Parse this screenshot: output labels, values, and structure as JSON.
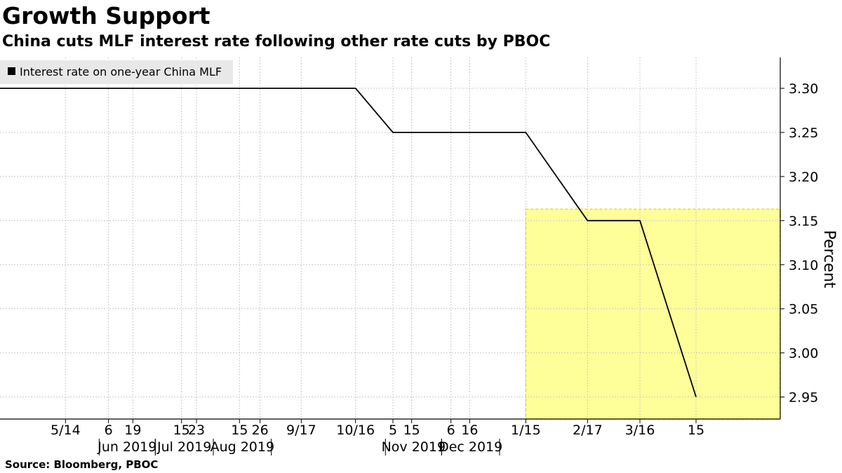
{
  "header": {
    "title": "Growth Support",
    "subtitle": "China cuts MLF interest rate following other rate cuts by PBOC"
  },
  "footer": {
    "source": "Source: Bloomberg, PBOC"
  },
  "chart_data": {
    "type": "line",
    "ylabel": "Percent",
    "ylim": [
      2.925,
      3.335
    ],
    "yticks": [
      2.95,
      3.0,
      3.05,
      3.1,
      3.15,
      3.2,
      3.25,
      3.3
    ],
    "ytick_labels": [
      "2.95",
      "3.00",
      "3.05",
      "3.10",
      "3.15",
      "3.20",
      "3.25",
      "3.30"
    ],
    "grid": true,
    "legend_position": "top-left",
    "xlim": [
      "2019-04-09",
      "2020-05-30"
    ],
    "xticks": [
      {
        "date": "2019-05-14",
        "label": "5/14"
      },
      {
        "date": "2019-06-06",
        "label": "6"
      },
      {
        "date": "2019-06-19",
        "label": "19"
      },
      {
        "date": "2019-07-15",
        "label": "15"
      },
      {
        "date": "2019-07-23",
        "label": "23"
      },
      {
        "date": "2019-08-15",
        "label": "15"
      },
      {
        "date": "2019-08-26",
        "label": "26"
      },
      {
        "date": "2019-09-17",
        "label": "9/17"
      },
      {
        "date": "2019-10-16",
        "label": "10/16"
      },
      {
        "date": "2019-11-05",
        "label": "5"
      },
      {
        "date": "2019-11-15",
        "label": "15"
      },
      {
        "date": "2019-12-06",
        "label": "6"
      },
      {
        "date": "2019-12-16",
        "label": "16"
      },
      {
        "date": "2020-01-15",
        "label": "1/15"
      },
      {
        "date": "2020-02-17",
        "label": "2/17"
      },
      {
        "date": "2020-03-16",
        "label": "3/16"
      },
      {
        "date": "2020-04-15",
        "label": "15"
      }
    ],
    "month_labels": [
      {
        "date": "2019-06-01",
        "label": "Jun 2019"
      },
      {
        "date": "2019-07-01",
        "label": "Jul 2019"
      },
      {
        "date": "2019-08-01",
        "label": "Aug 2019"
      },
      {
        "date": "2019-11-01",
        "label": "Nov 2019"
      },
      {
        "date": "2019-12-01",
        "label": "Dec 2019"
      }
    ],
    "series": [
      {
        "name": "Interest rate on one-year China MLF",
        "color": "#000000",
        "points": [
          {
            "x": "2019-04-09",
            "y": 3.3
          },
          {
            "x": "2019-10-16",
            "y": 3.3
          },
          {
            "x": "2019-11-05",
            "y": 3.25
          },
          {
            "x": "2020-01-15",
            "y": 3.25
          },
          {
            "x": "2020-02-17",
            "y": 3.15
          },
          {
            "x": "2020-03-16",
            "y": 3.15
          },
          {
            "x": "2020-04-15",
            "y": 2.95
          }
        ]
      }
    ],
    "highlight": {
      "x_from": "2020-01-15",
      "x_to": "2020-05-30",
      "y_from": 2.925,
      "y_to": 3.163,
      "fill": "#ffff99",
      "border": "#f5d60a"
    }
  }
}
